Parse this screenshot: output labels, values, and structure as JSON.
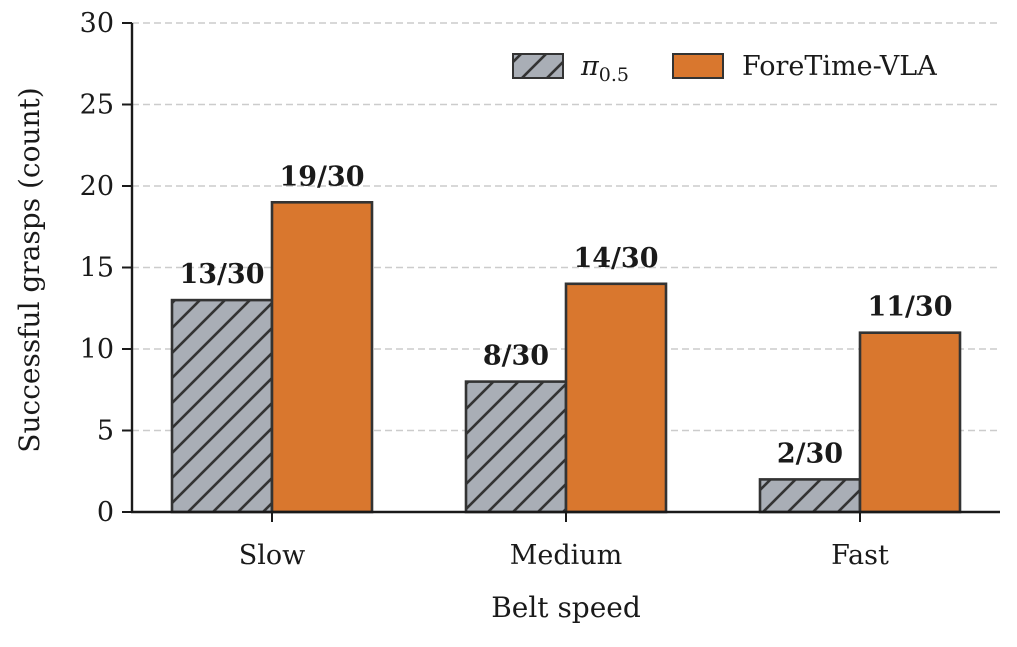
{
  "chart_data": {
    "type": "bar",
    "categories": [
      "Slow",
      "Medium",
      "Fast"
    ],
    "series": [
      {
        "name": "π0.5",
        "legend_main": "π",
        "legend_sub": "0.5",
        "values": [
          13,
          8,
          2
        ],
        "labels": [
          "13/30",
          "8/30",
          "2/30"
        ],
        "color": "#a9aeb6",
        "hatched": true
      },
      {
        "name": "ForeTime-VLA",
        "values": [
          19,
          14,
          11
        ],
        "labels": [
          "19/30",
          "14/30",
          "11/30"
        ],
        "color": "#d9772e",
        "hatched": false
      }
    ],
    "xlabel": "Belt speed",
    "ylabel": "Successful grasps (count)",
    "ylim": [
      0,
      30
    ],
    "yticks": [
      0,
      5,
      10,
      15,
      20,
      25,
      30
    ],
    "grid": "y-dashed",
    "legend_position": "top-right"
  },
  "colors": {
    "edge": "#333333",
    "grid": "#cccccc",
    "axis": "#1a1a1a"
  }
}
